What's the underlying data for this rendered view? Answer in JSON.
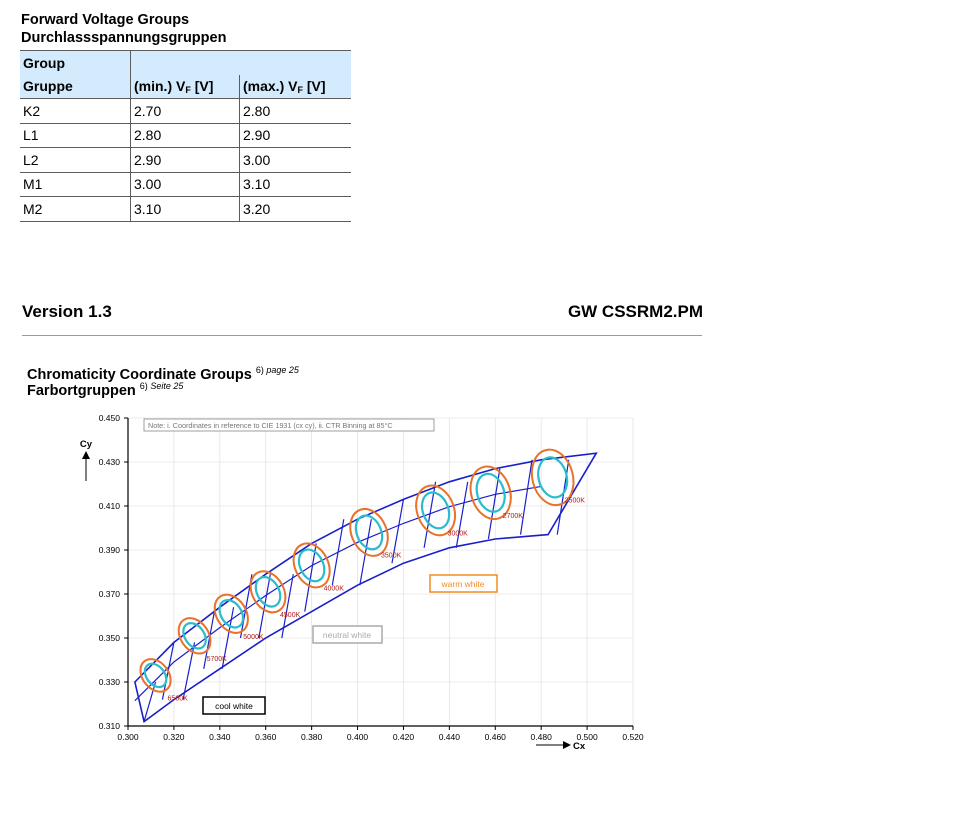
{
  "vf_section": {
    "title_en": "Forward Voltage Groups",
    "title_de": "Durchlassspannungsgruppen",
    "header": {
      "group_en": "Group",
      "group_de": "Gruppe",
      "min_prefix": "(min.) V",
      "max_prefix": "(max.) V",
      "sub": "F",
      "unit": " [V]"
    },
    "rows": [
      {
        "group": "K2",
        "min": "2.70",
        "max": "2.80"
      },
      {
        "group": "L1",
        "min": "2.80",
        "max": "2.90"
      },
      {
        "group": "L2",
        "min": "2.90",
        "max": "3.00"
      },
      {
        "group": "M1",
        "min": "3.00",
        "max": "3.10"
      },
      {
        "group": "M2",
        "min": "3.10",
        "max": "3.20"
      }
    ]
  },
  "footer": {
    "version": "Version 1.3",
    "doc_name": "GW CSSRM2.PM"
  },
  "cc_section": {
    "title_en": "Chromaticity Coordinate Groups",
    "title_de": "Farbortgruppen",
    "ref_en_num": "6)",
    "ref_en_page": "page 25",
    "ref_de_num": "6)",
    "ref_de_page": "Seite 25"
  },
  "chart_data": {
    "type": "scatter",
    "title": "",
    "note": "Note: i. Coordinates in reference to CIE 1931 (cx cy), ii. CTR Binning at 85°C",
    "xlabel": "Cx",
    "ylabel": "Cy",
    "xlim": [
      0.3,
      0.52
    ],
    "ylim": [
      0.31,
      0.45
    ],
    "xticks": [
      "0.300",
      "0.320",
      "0.340",
      "0.360",
      "0.380",
      "0.400",
      "0.420",
      "0.440",
      "0.460",
      "0.480",
      "0.500",
      "0.520"
    ],
    "yticks": [
      "0.310",
      "0.330",
      "0.350",
      "0.370",
      "0.390",
      "0.410",
      "0.430",
      "0.450"
    ],
    "grid": true,
    "cct_bins": [
      {
        "label": "6500K",
        "x": 0.312,
        "y": 0.327
      },
      {
        "label": "5700K",
        "x": 0.329,
        "y": 0.345
      },
      {
        "label": "5000K",
        "x": 0.345,
        "y": 0.355
      },
      {
        "label": "4500K",
        "x": 0.361,
        "y": 0.365
      },
      {
        "label": "4000K",
        "x": 0.38,
        "y": 0.377
      },
      {
        "label": "3500K",
        "x": 0.405,
        "y": 0.392
      },
      {
        "label": "3000K",
        "x": 0.434,
        "y": 0.402
      },
      {
        "label": "2700K",
        "x": 0.458,
        "y": 0.41
      },
      {
        "label": "2500K",
        "x": 0.485,
        "y": 0.417
      }
    ],
    "categories": [
      {
        "label": "cool white",
        "color": "#000000"
      },
      {
        "label": "neutral white",
        "color": "#aaaaaa"
      },
      {
        "label": "warm white",
        "color": "#f28c1e"
      }
    ],
    "colors": {
      "outline": "#1a1fc9",
      "outer_ellipse": "#e8722b",
      "inner_ellipse": "#2bbccb",
      "cct_text": "#b01a1a",
      "grid": "#e4e4e4"
    }
  }
}
